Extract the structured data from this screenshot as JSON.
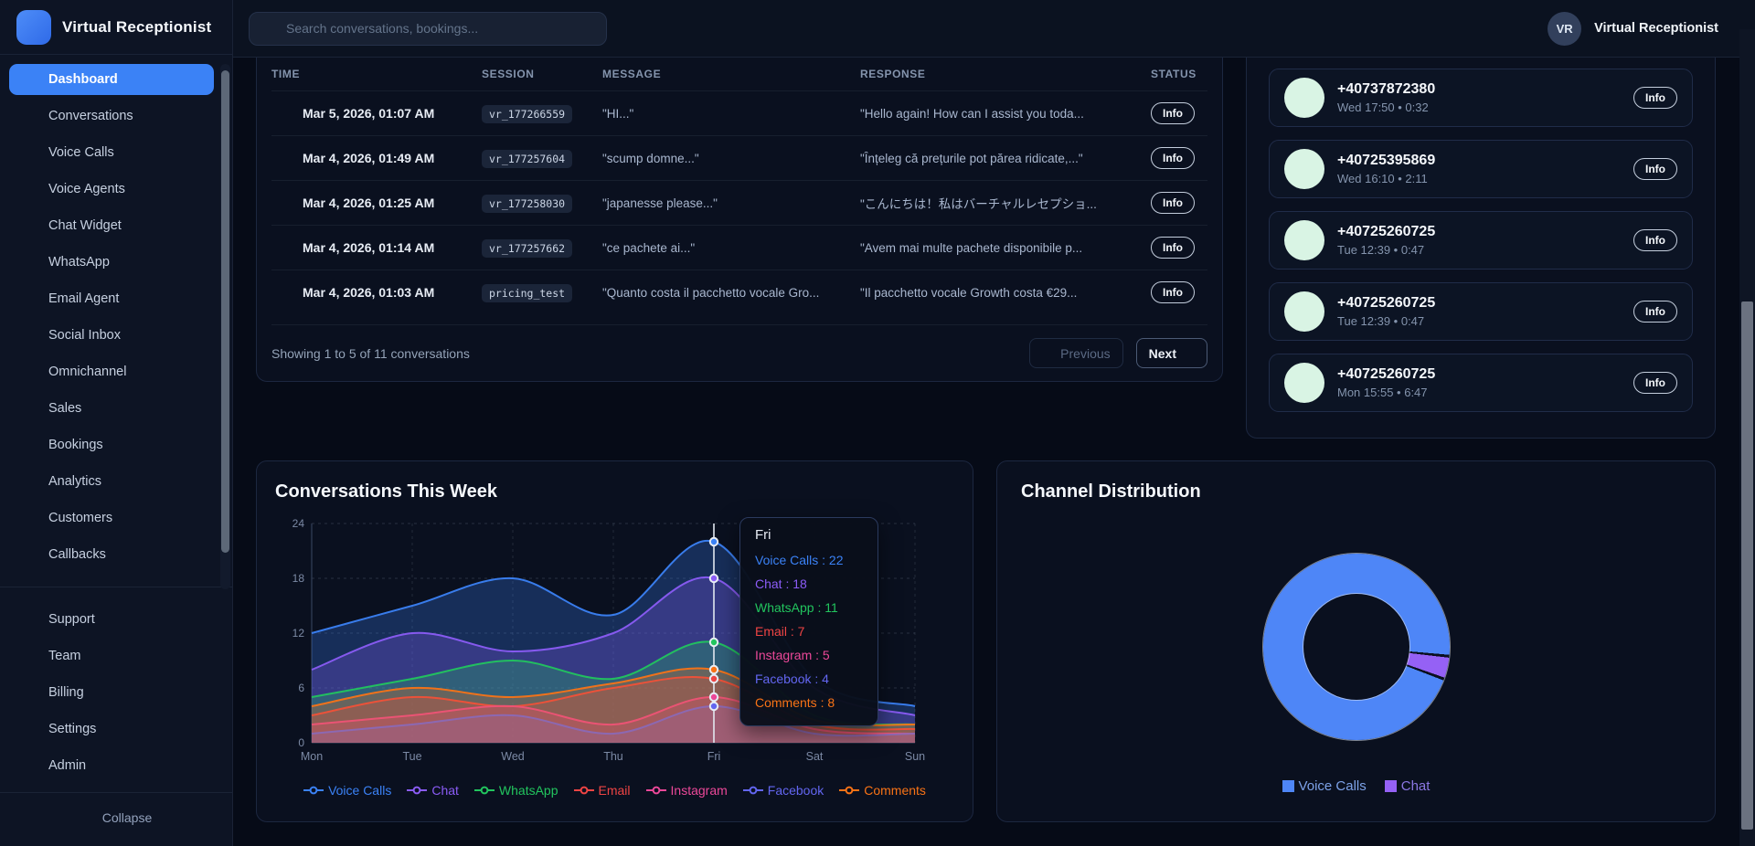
{
  "app": {
    "title": "Virtual Receptionist"
  },
  "topbar": {
    "search_placeholder": "Search conversations, bookings...",
    "user_initials": "VR",
    "user_name": "Virtual Receptionist"
  },
  "sidebar": {
    "primary_items": [
      {
        "label": "Dashboard",
        "icon": "dashboard",
        "active": true
      },
      {
        "label": "Conversations",
        "icon": "conversations",
        "active": false
      },
      {
        "label": "Voice Calls",
        "icon": "voice-calls",
        "active": false
      },
      {
        "label": "Voice Agents",
        "icon": "voice-agents",
        "active": false
      },
      {
        "label": "Chat Widget",
        "icon": "chat-widget",
        "active": false
      },
      {
        "label": "WhatsApp",
        "icon": "whatsapp",
        "active": false
      },
      {
        "label": "Email Agent",
        "icon": "email-agent",
        "active": false
      },
      {
        "label": "Social Inbox",
        "icon": "social-inbox",
        "active": false
      },
      {
        "label": "Omnichannel",
        "icon": "omnichannel",
        "active": false
      },
      {
        "label": "Sales",
        "icon": "sales",
        "active": false
      },
      {
        "label": "Bookings",
        "icon": "bookings",
        "active": false
      },
      {
        "label": "Analytics",
        "icon": "analytics",
        "active": false
      },
      {
        "label": "Customers",
        "icon": "customers",
        "active": false
      },
      {
        "label": "Callbacks",
        "icon": "callbacks",
        "active": false
      }
    ],
    "secondary_items": [
      {
        "label": "Support",
        "icon": "support",
        "active": false
      },
      {
        "label": "Team",
        "icon": "team",
        "active": false
      },
      {
        "label": "Billing",
        "icon": "billing",
        "active": false
      },
      {
        "label": "Settings",
        "icon": "settings",
        "active": false
      },
      {
        "label": "Admin",
        "icon": "admin",
        "active": false
      }
    ],
    "collapse_label": "Collapse"
  },
  "conversations_table": {
    "columns": [
      "TIME",
      "SESSION",
      "MESSAGE",
      "RESPONSE",
      "STATUS"
    ],
    "rows": [
      {
        "time": "Mar 5, 2026, 01:07 AM",
        "session": "vr_177266559",
        "message": "\"HI...\"",
        "response": "\"Hello again! How can I assist you toda...",
        "status": "Info"
      },
      {
        "time": "Mar 4, 2026, 01:49 AM",
        "session": "vr_177257604",
        "message": "\"scump domne...\"",
        "response": "\"Înțeleg că prețurile pot părea ridicate,...\"",
        "status": "Info"
      },
      {
        "time": "Mar 4, 2026, 01:25 AM",
        "session": "vr_177258030",
        "message": "\"japanesse please...\"",
        "response": "\"こんにちは！私はバーチャルレセプショ...",
        "status": "Info"
      },
      {
        "time": "Mar 4, 2026, 01:14 AM",
        "session": "vr_177257662",
        "message": "\"ce pachete ai...\"",
        "response": "\"Avem mai multe pachete disponibile p...",
        "status": "Info"
      },
      {
        "time": "Mar 4, 2026, 01:03 AM",
        "session": "pricing_test",
        "message": "\"Quanto costa il pacchetto vocale Gro...",
        "response": "\"Il pacchetto vocale Growth costa €29...",
        "status": "Info"
      }
    ],
    "footer_text": "Showing 1 to 5 of 11 conversations",
    "prev_label": "Previous",
    "next_label": "Next"
  },
  "recent_calls": {
    "items": [
      {
        "number": "+40737872380",
        "meta": "Wed 17:50 • 0:32",
        "action": "Info"
      },
      {
        "number": "+40725395869",
        "meta": "Wed 16:10 • 2:11",
        "action": "Info"
      },
      {
        "number": "+40725260725",
        "meta": "Tue 12:39 • 0:47",
        "action": "Info"
      },
      {
        "number": "+40725260725",
        "meta": "Tue 12:39 • 0:47",
        "action": "Info"
      },
      {
        "number": "+40725260725",
        "meta": "Mon 15:55 • 6:47",
        "action": "Info"
      }
    ]
  },
  "chart_data": [
    {
      "type": "area",
      "title": "Conversations This Week",
      "x": [
        "Mon",
        "Tue",
        "Wed",
        "Thu",
        "Fri",
        "Sat",
        "Sun"
      ],
      "ylim": [
        0,
        24
      ],
      "yticks": [
        0,
        6,
        12,
        18,
        24
      ],
      "grid": true,
      "legend_position": "bottom",
      "series": [
        {
          "name": "Voice Calls",
          "color": "#3b82f6",
          "values": [
            12,
            15,
            18,
            14,
            22,
            7,
            4
          ]
        },
        {
          "name": "Chat",
          "color": "#8b5cf6",
          "values": [
            8,
            12,
            10,
            12,
            18,
            6,
            3
          ]
        },
        {
          "name": "WhatsApp",
          "color": "#22c55e",
          "values": [
            5,
            7,
            9,
            7,
            11,
            3,
            2
          ]
        },
        {
          "name": "Email",
          "color": "#ef4444",
          "values": [
            3,
            5,
            4,
            6,
            7,
            2,
            1.5
          ]
        },
        {
          "name": "Instagram",
          "color": "#ec4899",
          "values": [
            2,
            3,
            4,
            2,
            5,
            1.5,
            1
          ]
        },
        {
          "name": "Facebook",
          "color": "#6366f1",
          "values": [
            1,
            2,
            3,
            1,
            4,
            1,
            1
          ]
        },
        {
          "name": "Comments",
          "color": "#f97316",
          "values": [
            4,
            6,
            5,
            6.5,
            8,
            2.5,
            2
          ]
        }
      ],
      "tooltip": {
        "label": "Fri",
        "highlight_x": "Fri",
        "entries": [
          {
            "name": "Voice Calls",
            "value": 22
          },
          {
            "name": "Chat",
            "value": 18
          },
          {
            "name": "WhatsApp",
            "value": 11
          },
          {
            "name": "Email",
            "value": 7
          },
          {
            "name": "Instagram",
            "value": 5
          },
          {
            "name": "Facebook",
            "value": 4
          },
          {
            "name": "Comments",
            "value": 8
          }
        ]
      }
    },
    {
      "type": "pie",
      "title": "Channel Distribution",
      "donut": true,
      "legend_position": "bottom",
      "slices": [
        {
          "name": "Voice Calls",
          "value": 96.5,
          "color": "#4e86f7",
          "legend_text_color": "#7da2e8"
        },
        {
          "name": "Chat",
          "value": 3.5,
          "color": "#9561f5",
          "legend_text_color": "#8b77e3"
        }
      ]
    }
  ]
}
